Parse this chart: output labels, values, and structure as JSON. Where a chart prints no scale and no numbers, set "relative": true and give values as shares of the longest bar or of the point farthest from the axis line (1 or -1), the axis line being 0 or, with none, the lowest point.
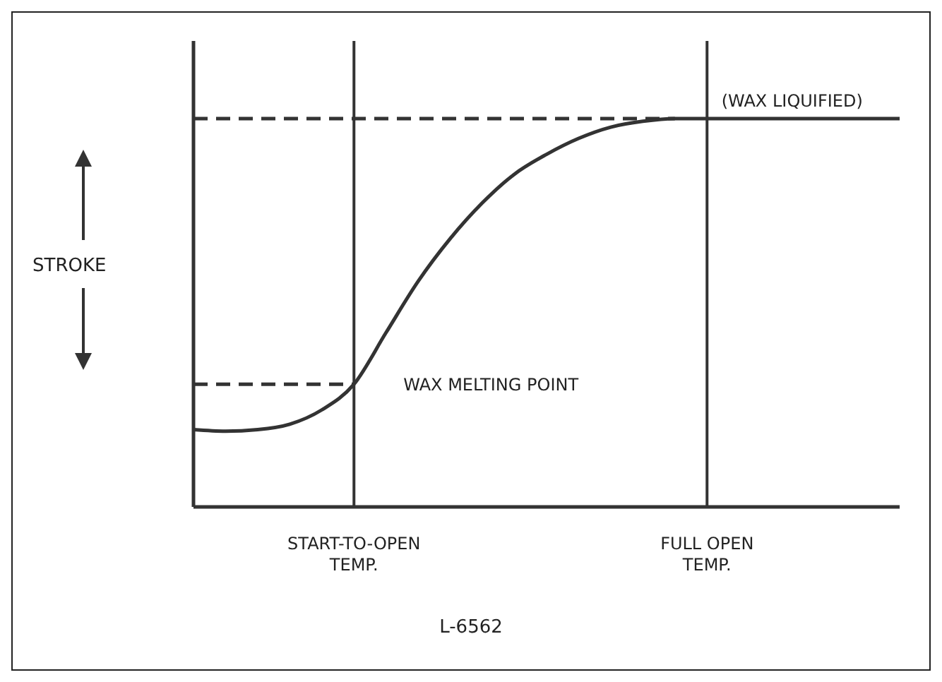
{
  "chart_data": {
    "type": "line",
    "relative": true,
    "ylabel": "STROKE",
    "color": "#333333",
    "categories": [
      null,
      null,
      null,
      null,
      null,
      "START-TO-OPEN TEMP.",
      null,
      null,
      null,
      null,
      null,
      null,
      null,
      null,
      null,
      null,
      "FULL OPEN TEMP.",
      null,
      null,
      null,
      null,
      null,
      null
    ],
    "values": [
      0.199,
      0.195,
      0.199,
      0.213,
      0.25,
      0.316,
      0.449,
      0.581,
      0.691,
      0.783,
      0.857,
      0.908,
      0.949,
      0.978,
      0.993,
      1,
      1,
      1,
      1,
      1,
      1,
      1,
      1
    ],
    "ref_lines": [
      {
        "axis": "x",
        "value": "START-TO-OPEN TEMP."
      },
      {
        "axis": "x",
        "value": "FULL OPEN TEMP."
      },
      {
        "axis": "y",
        "value": 1,
        "label": "(WAX LIQUIFIED)",
        "line_style": "dashed"
      },
      {
        "axis": "y",
        "value": 0.316,
        "label": "WAX MELTING POINT",
        "line_style": "dashed"
      }
    ],
    "annotations": [
      "L-6562"
    ],
    "marker": "none",
    "line_style": "solid"
  }
}
